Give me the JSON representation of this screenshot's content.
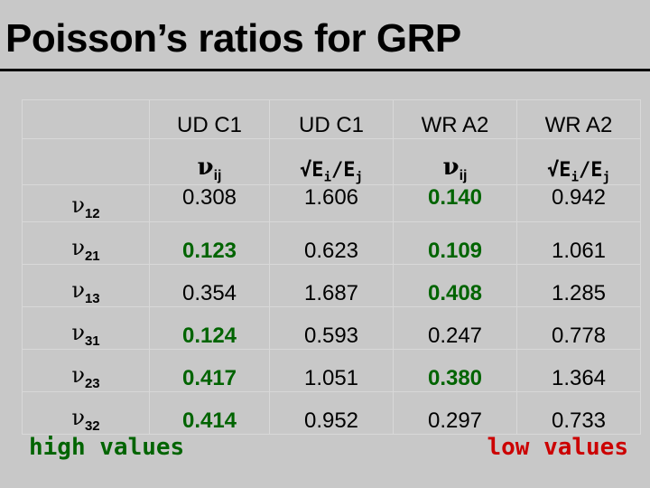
{
  "title": "Poisson’s ratios for GRP",
  "columns": [
    {
      "material": "UD C1",
      "quantity_symbol": "ν",
      "quantity_sub": "ij",
      "type": "nu"
    },
    {
      "material": "UD C1",
      "quantity": "√E",
      "quantity_sub1": "i",
      "quantity_mid": "/E",
      "quantity_sub2": "j",
      "type": "ratio"
    },
    {
      "material": "WR A2",
      "quantity_symbol": "ν",
      "quantity_sub": "ij",
      "type": "nu"
    },
    {
      "material": "WR A2",
      "quantity": "√E",
      "quantity_sub1": "i",
      "quantity_mid": "/E",
      "quantity_sub2": "j",
      "type": "ratio"
    }
  ],
  "rows": [
    {
      "symbol": "ν",
      "sub": "12",
      "values": [
        "0.308",
        "1.606",
        "0.140",
        "0.942"
      ],
      "highlight": [
        false,
        false,
        true,
        false
      ]
    },
    {
      "symbol": "ν",
      "sub": "21",
      "values": [
        "0.123",
        "0.623",
        "0.109",
        "1.061"
      ],
      "highlight": [
        true,
        false,
        true,
        false
      ]
    },
    {
      "symbol": "ν",
      "sub": "13",
      "values": [
        "0.354",
        "1.687",
        "0.408",
        "1.285"
      ],
      "highlight": [
        false,
        false,
        true,
        false
      ]
    },
    {
      "symbol": "ν",
      "sub": "31",
      "values": [
        "0.124",
        "0.593",
        "0.247",
        "0.778"
      ],
      "highlight": [
        true,
        false,
        false,
        false
      ]
    },
    {
      "symbol": "ν",
      "sub": "23",
      "values": [
        "0.417",
        "1.051",
        "0.380",
        "1.364"
      ],
      "highlight": [
        true,
        false,
        true,
        false
      ]
    },
    {
      "symbol": "ν",
      "sub": "32",
      "values": [
        "0.414",
        "0.952",
        "0.297",
        "0.733"
      ],
      "highlight": [
        true,
        false,
        false,
        false
      ]
    }
  ],
  "labels": {
    "high": "high values",
    "low": "low values"
  },
  "colors": {
    "background": "#c8c8c8",
    "highlight": "#006400",
    "low": "#cc0000"
  }
}
